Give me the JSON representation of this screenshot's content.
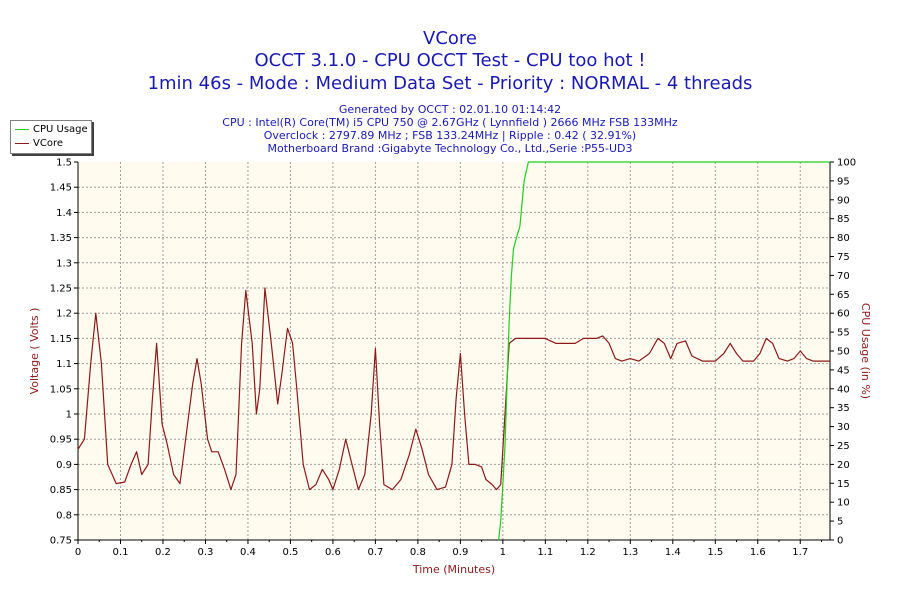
{
  "title": {
    "line1": "VCore",
    "line2": "OCCT 3.1.0 - CPU OCCT Test - CPU too hot !",
    "line3": "1min 46s - Mode : Medium Data Set - Priority : NORMAL - 4 threads"
  },
  "info": [
    "Generated by OCCT : 02.01.10 01:14:42",
    "CPU : Intel(R) Core(TM) i5 CPU 750 @ 2.67GHz ( Lynnfield ) 2666 MHz FSB 133MHz",
    "Overclock : 2797.89 MHz ; FSB 133.24MHz | Ripple : 0.42 ( 32.91%)",
    "Motherboard Brand :Gigabyte Technology Co., Ltd.,Serie :P55-UD3"
  ],
  "legend": [
    {
      "label": "CPU Usage",
      "color": "#22cc22"
    },
    {
      "label": "VCore",
      "color": "#8b1a1a"
    }
  ],
  "colors": {
    "plot_bg": "#fffbef",
    "grid": "#a0a0a0",
    "cpu": "#22cc22",
    "vcore": "#8b1a1a",
    "axis_text": "#000000",
    "axis_label": "#8b1a1a"
  },
  "chart_data": {
    "type": "line",
    "xlabel": "Time (Minutes)",
    "ylabel_left": "Voltage ( Volts )",
    "ylabel_right": "CPU Usage (in %)",
    "xlim": [
      0,
      1.77
    ],
    "ylim_left": [
      0.75,
      1.5
    ],
    "ylim_right": [
      0,
      100
    ],
    "x_ticks": [
      "0",
      "0.1",
      "0.2",
      "0.3",
      "0.4",
      "0.5",
      "0.6",
      "0.7",
      "0.8",
      "0.9",
      "1",
      "1.1",
      "1.2",
      "1.3",
      "1.4",
      "1.5",
      "1.6",
      "1.7"
    ],
    "y_left_ticks": [
      "0.75",
      "0.8",
      "0.85",
      "0.9",
      "0.95",
      "1",
      "1.05",
      "1.1",
      "1.15",
      "1.2",
      "1.25",
      "1.3",
      "1.35",
      "1.4",
      "1.45",
      "1.5"
    ],
    "y_right_ticks": [
      "0",
      "5",
      "10",
      "15",
      "20",
      "25",
      "30",
      "35",
      "40",
      "45",
      "50",
      "55",
      "60",
      "65",
      "70",
      "75",
      "80",
      "85",
      "90",
      "95",
      "100"
    ],
    "grid": true,
    "series": [
      {
        "name": "VCore",
        "axis": "left",
        "points": [
          [
            0.0,
            0.93
          ],
          [
            0.015,
            0.95
          ],
          [
            0.03,
            1.1
          ],
          [
            0.042,
            1.2
          ],
          [
            0.055,
            1.1
          ],
          [
            0.07,
            0.9
          ],
          [
            0.09,
            0.862
          ],
          [
            0.11,
            0.865
          ],
          [
            0.125,
            0.9
          ],
          [
            0.138,
            0.925
          ],
          [
            0.15,
            0.88
          ],
          [
            0.165,
            0.9
          ],
          [
            0.175,
            1.03
          ],
          [
            0.185,
            1.14
          ],
          [
            0.198,
            0.98
          ],
          [
            0.21,
            0.94
          ],
          [
            0.225,
            0.88
          ],
          [
            0.24,
            0.862
          ],
          [
            0.255,
            0.96
          ],
          [
            0.27,
            1.06
          ],
          [
            0.28,
            1.11
          ],
          [
            0.29,
            1.06
          ],
          [
            0.305,
            0.95
          ],
          [
            0.315,
            0.925
          ],
          [
            0.33,
            0.925
          ],
          [
            0.345,
            0.89
          ],
          [
            0.36,
            0.85
          ],
          [
            0.372,
            0.88
          ],
          [
            0.385,
            1.14
          ],
          [
            0.395,
            1.245
          ],
          [
            0.41,
            1.14
          ],
          [
            0.42,
            1.0
          ],
          [
            0.428,
            1.05
          ],
          [
            0.44,
            1.25
          ],
          [
            0.455,
            1.14
          ],
          [
            0.47,
            1.02
          ],
          [
            0.48,
            1.08
          ],
          [
            0.493,
            1.17
          ],
          [
            0.505,
            1.14
          ],
          [
            0.515,
            1.05
          ],
          [
            0.53,
            0.9
          ],
          [
            0.545,
            0.85
          ],
          [
            0.56,
            0.86
          ],
          [
            0.575,
            0.89
          ],
          [
            0.59,
            0.87
          ],
          [
            0.6,
            0.85
          ],
          [
            0.615,
            0.89
          ],
          [
            0.63,
            0.95
          ],
          [
            0.645,
            0.9
          ],
          [
            0.66,
            0.85
          ],
          [
            0.675,
            0.88
          ],
          [
            0.69,
            1.0
          ],
          [
            0.7,
            1.13
          ],
          [
            0.71,
            0.98
          ],
          [
            0.72,
            0.86
          ],
          [
            0.74,
            0.85
          ],
          [
            0.76,
            0.87
          ],
          [
            0.78,
            0.92
          ],
          [
            0.795,
            0.97
          ],
          [
            0.81,
            0.93
          ],
          [
            0.825,
            0.88
          ],
          [
            0.845,
            0.85
          ],
          [
            0.865,
            0.855
          ],
          [
            0.88,
            0.9
          ],
          [
            0.89,
            1.03
          ],
          [
            0.9,
            1.12
          ],
          [
            0.91,
            1.0
          ],
          [
            0.92,
            0.9
          ],
          [
            0.935,
            0.9
          ],
          [
            0.95,
            0.895
          ],
          [
            0.96,
            0.87
          ],
          [
            0.975,
            0.86
          ],
          [
            0.985,
            0.85
          ],
          [
            0.995,
            0.86
          ],
          [
            1.005,
            1.0
          ],
          [
            1.015,
            1.14
          ],
          [
            1.03,
            1.15
          ],
          [
            1.06,
            1.15
          ],
          [
            1.1,
            1.15
          ],
          [
            1.125,
            1.14
          ],
          [
            1.15,
            1.14
          ],
          [
            1.17,
            1.14
          ],
          [
            1.19,
            1.15
          ],
          [
            1.22,
            1.15
          ],
          [
            1.235,
            1.155
          ],
          [
            1.25,
            1.14
          ],
          [
            1.265,
            1.11
          ],
          [
            1.28,
            1.105
          ],
          [
            1.3,
            1.11
          ],
          [
            1.32,
            1.105
          ],
          [
            1.345,
            1.12
          ],
          [
            1.365,
            1.15
          ],
          [
            1.38,
            1.14
          ],
          [
            1.395,
            1.11
          ],
          [
            1.41,
            1.14
          ],
          [
            1.43,
            1.145
          ],
          [
            1.445,
            1.115
          ],
          [
            1.47,
            1.105
          ],
          [
            1.5,
            1.105
          ],
          [
            1.52,
            1.12
          ],
          [
            1.535,
            1.14
          ],
          [
            1.55,
            1.12
          ],
          [
            1.565,
            1.105
          ],
          [
            1.59,
            1.105
          ],
          [
            1.605,
            1.12
          ],
          [
            1.62,
            1.15
          ],
          [
            1.635,
            1.14
          ],
          [
            1.65,
            1.11
          ],
          [
            1.67,
            1.105
          ],
          [
            1.685,
            1.11
          ],
          [
            1.7,
            1.125
          ],
          [
            1.715,
            1.11
          ],
          [
            1.73,
            1.105
          ],
          [
            1.77,
            1.105
          ]
        ]
      },
      {
        "name": "CPU Usage",
        "axis": "right",
        "points": [
          [
            0.99,
            0
          ],
          [
            0.995,
            5
          ],
          [
            1.0,
            15
          ],
          [
            1.005,
            25
          ],
          [
            1.01,
            42
          ],
          [
            1.015,
            58
          ],
          [
            1.02,
            70
          ],
          [
            1.025,
            77
          ],
          [
            1.032,
            80
          ],
          [
            1.04,
            83
          ],
          [
            1.05,
            95
          ],
          [
            1.06,
            100
          ],
          [
            1.08,
            100
          ],
          [
            1.1,
            100
          ],
          [
            1.3,
            100
          ],
          [
            1.5,
            100
          ],
          [
            1.77,
            100
          ]
        ]
      }
    ]
  }
}
